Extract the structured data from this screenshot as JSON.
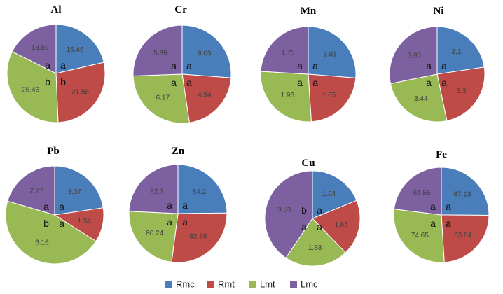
{
  "chart_data": {
    "type": "pie",
    "series_names": [
      "Rmc",
      "Rmt",
      "Lmt",
      "Lmc"
    ],
    "colors": [
      "#4a7ebb",
      "#be4b48",
      "#98b954",
      "#7d60a0"
    ],
    "legend_placement": "bottom-center",
    "charts": [
      {
        "title": "Al",
        "values": [
          16.46,
          21.56,
          25.46,
          13.59
        ],
        "labels": [
          "16.46",
          "21.56",
          "25.46",
          "13.59"
        ],
        "significance": [
          "a",
          "b",
          "b",
          "a"
        ]
      },
      {
        "title": "Cr",
        "values": [
          6.03,
          4.94,
          6.17,
          5.89
        ],
        "labels": [
          "6.03",
          "4.94",
          "6.17",
          "5.89"
        ],
        "significance": [
          "a",
          "a",
          "a",
          "a"
        ]
      },
      {
        "title": "Mn",
        "values": [
          1.91,
          1.65,
          1.96,
          1.75
        ],
        "labels": [
          "1.91",
          "1.65",
          "1.96",
          "1.75"
        ],
        "significance": [
          "a",
          "a",
          "a",
          "a"
        ]
      },
      {
        "title": "Ni",
        "values": [
          3.1,
          3.3,
          3.44,
          3.86
        ],
        "labels": [
          "3.1",
          "3.3",
          "3.44",
          "3.86"
        ],
        "significance": [
          "a",
          "a",
          "a",
          "a"
        ]
      },
      {
        "title": "Pb",
        "values": [
          3.07,
          1.54,
          6.16,
          2.77
        ],
        "labels": [
          "3.07",
          "1.54",
          "6.16",
          "2.77"
        ],
        "significance": [
          "a",
          "a",
          "b",
          "a"
        ]
      },
      {
        "title": "Zn",
        "values": [
          84.2,
          92.36,
          80.24,
          82.3
        ],
        "labels": [
          "84.2",
          "92.36",
          "80.24",
          "82.3"
        ],
        "significance": [
          "a",
          "a",
          "a",
          "a"
        ]
      },
      {
        "title": "Cu",
        "values": [
          1.64,
          1.65,
          1.88,
          3.53
        ],
        "labels": [
          "1.64",
          "1.65",
          "1.88",
          "3.53"
        ],
        "significance": [
          "a",
          "a",
          "a",
          "b"
        ]
      },
      {
        "title": "Fe",
        "values": [
          67.13,
          63.84,
          74.65,
          61.55
        ],
        "labels": [
          "67.13",
          "63.84",
          "74.65",
          "61.55"
        ],
        "significance": [
          "a",
          "a",
          "a",
          "a"
        ]
      }
    ]
  }
}
